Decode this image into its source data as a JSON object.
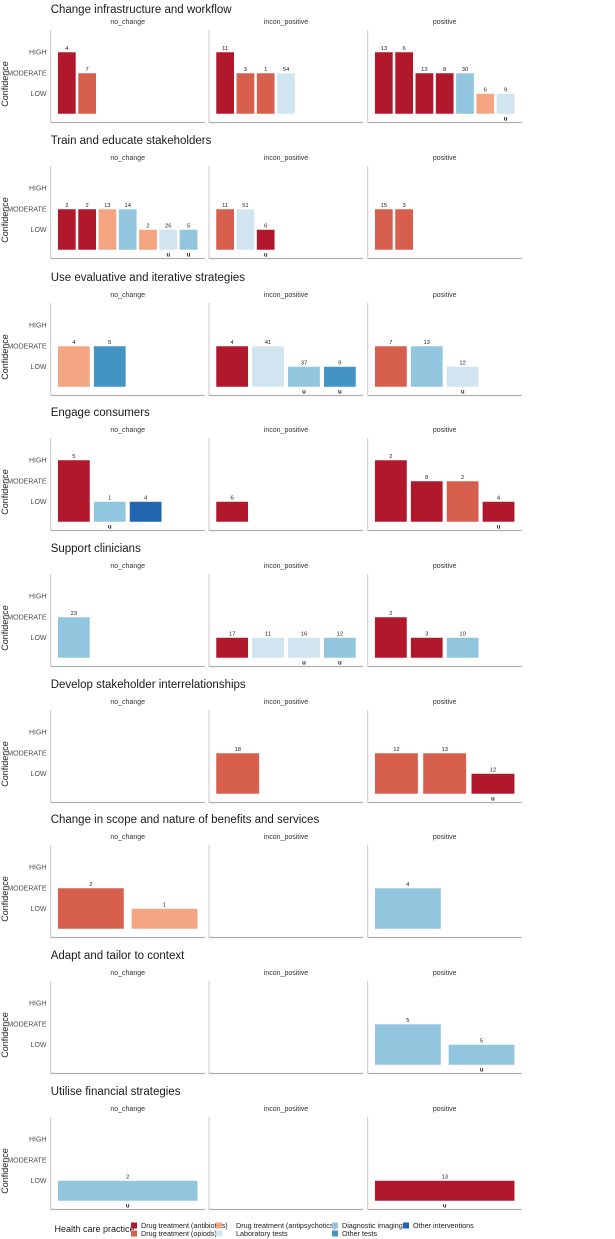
{
  "chart_data": {
    "type": "bar",
    "ylabel": "Confidence",
    "y_levels": [
      "LOW",
      "MODERATE",
      "HIGH"
    ],
    "u_label": "u",
    "legend": {
      "title": "Health care practice",
      "placement": "bottom",
      "entries": [
        {
          "key": "A",
          "label": "Drug treatment (antibiotics)",
          "color": "#b2182b"
        },
        {
          "key": "O",
          "label": "Drug treatment (opiods)",
          "color": "#d6604d"
        },
        {
          "key": "P",
          "label": "Drug treatment (antipsychotics)",
          "color": "#f4a582"
        },
        {
          "key": "L",
          "label": "Laboratory tests",
          "color": "#d1e5f0"
        },
        {
          "key": "D",
          "label": "Diagnostic imaging",
          "color": "#92c5de"
        },
        {
          "key": "T",
          "label": "Other tests",
          "color": "#4393c3"
        },
        {
          "key": "I",
          "label": "Other interventions",
          "color": "#2166ac"
        }
      ]
    },
    "rows": [
      {
        "title": "Change infrastructure and workflow",
        "panels": [
          {
            "facet": "no_change",
            "bars": [
              {
                "value": "4",
                "confidence": "HIGH",
                "practice": "A"
              },
              {
                "value": "7",
                "confidence": "MODERATE",
                "practice": "O"
              }
            ]
          },
          {
            "facet": "incon_positive",
            "bars": [
              {
                "value": "11",
                "confidence": "HIGH",
                "practice": "A"
              },
              {
                "value": "3",
                "confidence": "MODERATE",
                "practice": "O"
              },
              {
                "value": "1",
                "confidence": "MODERATE",
                "practice": "O"
              },
              {
                "value": "54",
                "confidence": "MODERATE",
                "practice": "L"
              }
            ]
          },
          {
            "facet": "positive",
            "bars": [
              {
                "value": "13",
                "confidence": "HIGH",
                "practice": "A"
              },
              {
                "value": "6",
                "confidence": "HIGH",
                "practice": "A"
              },
              {
                "value": "13",
                "confidence": "MODERATE",
                "practice": "A"
              },
              {
                "value": "8",
                "confidence": "MODERATE",
                "practice": "A"
              },
              {
                "value": "30",
                "confidence": "MODERATE",
                "practice": "D"
              },
              {
                "value": "6",
                "confidence": "LOW",
                "practice": "P"
              },
              {
                "value": "9",
                "confidence": "LOW",
                "practice": "L",
                "flag": "u"
              }
            ]
          }
        ]
      },
      {
        "title": "Train and educate stakeholders",
        "panels": [
          {
            "facet": "no_change",
            "bars": [
              {
                "value": "2",
                "confidence": "MODERATE",
                "practice": "A"
              },
              {
                "value": "2",
                "confidence": "MODERATE",
                "practice": "A"
              },
              {
                "value": "13",
                "confidence": "MODERATE",
                "practice": "P"
              },
              {
                "value": "14",
                "confidence": "MODERATE",
                "practice": "D"
              },
              {
                "value": "2",
                "confidence": "LOW",
                "practice": "P"
              },
              {
                "value": "26",
                "confidence": "LOW",
                "practice": "L",
                "flag": "u"
              },
              {
                "value": "5",
                "confidence": "LOW",
                "practice": "D",
                "flag": "u"
              }
            ]
          },
          {
            "facet": "incon_positive",
            "bars": [
              {
                "value": "11",
                "confidence": "MODERATE",
                "practice": "O"
              },
              {
                "value": "51",
                "confidence": "MODERATE",
                "practice": "L"
              },
              {
                "value": "6",
                "confidence": "LOW",
                "practice": "A",
                "flag": "u"
              }
            ]
          },
          {
            "facet": "positive",
            "bars": [
              {
                "value": "15",
                "confidence": "MODERATE",
                "practice": "O"
              },
              {
                "value": "3",
                "confidence": "MODERATE",
                "practice": "O"
              }
            ]
          }
        ]
      },
      {
        "title": "Use evaluative and iterative strategies",
        "panels": [
          {
            "facet": "no_change",
            "bars": [
              {
                "value": "4",
                "confidence": "MODERATE",
                "practice": "P"
              },
              {
                "value": "5",
                "confidence": "MODERATE",
                "practice": "T"
              }
            ]
          },
          {
            "facet": "incon_positive",
            "bars": [
              {
                "value": "4",
                "confidence": "MODERATE",
                "practice": "A"
              },
              {
                "value": "41",
                "confidence": "MODERATE",
                "practice": "L"
              },
              {
                "value": "37",
                "confidence": "LOW",
                "practice": "D",
                "flag": "u"
              },
              {
                "value": "9",
                "confidence": "LOW",
                "practice": "T",
                "flag": "u"
              }
            ]
          },
          {
            "facet": "positive",
            "bars": [
              {
                "value": "7",
                "confidence": "MODERATE",
                "practice": "O"
              },
              {
                "value": "13",
                "confidence": "MODERATE",
                "practice": "D"
              },
              {
                "value": "12",
                "confidence": "LOW",
                "practice": "L",
                "flag": "u"
              }
            ]
          }
        ]
      },
      {
        "title": "Engage consumers",
        "panels": [
          {
            "facet": "no_change",
            "bars": [
              {
                "value": "5",
                "confidence": "HIGH",
                "practice": "A"
              },
              {
                "value": "1",
                "confidence": "LOW",
                "practice": "D",
                "flag": "u"
              },
              {
                "value": "4",
                "confidence": "LOW",
                "practice": "I"
              }
            ]
          },
          {
            "facet": "incon_positive",
            "bars": [
              {
                "value": "6",
                "confidence": "LOW",
                "practice": "A"
              }
            ]
          },
          {
            "facet": "positive",
            "bars": [
              {
                "value": "2",
                "confidence": "HIGH",
                "practice": "A"
              },
              {
                "value": "8",
                "confidence": "MODERATE",
                "practice": "A"
              },
              {
                "value": "2",
                "confidence": "MODERATE",
                "practice": "O"
              },
              {
                "value": "4",
                "confidence": "LOW",
                "practice": "A",
                "flag": "u"
              }
            ]
          }
        ]
      },
      {
        "title": "Support clinicians",
        "panels": [
          {
            "facet": "no_change",
            "bars": [
              {
                "value": "23",
                "confidence": "MODERATE",
                "practice": "D"
              }
            ]
          },
          {
            "facet": "incon_positive",
            "bars": [
              {
                "value": "17",
                "confidence": "LOW",
                "practice": "A"
              },
              {
                "value": "11",
                "confidence": "LOW",
                "practice": "L"
              },
              {
                "value": "16",
                "confidence": "LOW",
                "practice": "L",
                "flag": "u"
              },
              {
                "value": "12",
                "confidence": "LOW",
                "practice": "D",
                "flag": "u"
              }
            ]
          },
          {
            "facet": "positive",
            "bars": [
              {
                "value": "2",
                "confidence": "MODERATE",
                "practice": "A"
              },
              {
                "value": "3",
                "confidence": "LOW",
                "practice": "A"
              },
              {
                "value": "10",
                "confidence": "LOW",
                "practice": "D"
              }
            ]
          }
        ]
      },
      {
        "title": "Develop stakeholder interrelationships",
        "panels": [
          {
            "facet": "no_change",
            "bars": []
          },
          {
            "facet": "incon_positive",
            "bars": [
              {
                "value": "18",
                "confidence": "MODERATE",
                "practice": "O"
              }
            ]
          },
          {
            "facet": "positive",
            "bars": [
              {
                "value": "12",
                "confidence": "MODERATE",
                "practice": "O"
              },
              {
                "value": "13",
                "confidence": "MODERATE",
                "practice": "O"
              },
              {
                "value": "12",
                "confidence": "LOW",
                "practice": "A",
                "flag": "u"
              }
            ]
          }
        ]
      },
      {
        "title": "Change in scope and nature of benefits and services",
        "panels": [
          {
            "facet": "no_change",
            "bars": [
              {
                "value": "2",
                "confidence": "MODERATE",
                "practice": "O"
              },
              {
                "value": "1",
                "confidence": "LOW",
                "practice": "P"
              }
            ]
          },
          {
            "facet": "incon_positive",
            "bars": []
          },
          {
            "facet": "positive",
            "bars": [
              {
                "value": "4",
                "confidence": "MODERATE",
                "practice": "D"
              }
            ]
          }
        ]
      },
      {
        "title": "Adapt and tailor to context",
        "panels": [
          {
            "facet": "no_change",
            "bars": []
          },
          {
            "facet": "incon_positive",
            "bars": []
          },
          {
            "facet": "positive",
            "bars": [
              {
                "value": "5",
                "confidence": "MODERATE",
                "practice": "D"
              },
              {
                "value": "5",
                "confidence": "LOW",
                "practice": "D",
                "flag": "u"
              }
            ]
          }
        ]
      },
      {
        "title": "Utilise financial strategies",
        "panels": [
          {
            "facet": "no_change",
            "bars": [
              {
                "value": "2",
                "confidence": "LOW",
                "practice": "D",
                "flag": "u"
              }
            ]
          },
          {
            "facet": "incon_positive",
            "bars": []
          },
          {
            "facet": "positive",
            "bars": [
              {
                "value": "13",
                "confidence": "LOW",
                "practice": "A",
                "flag": "u"
              }
            ]
          }
        ]
      }
    ]
  }
}
